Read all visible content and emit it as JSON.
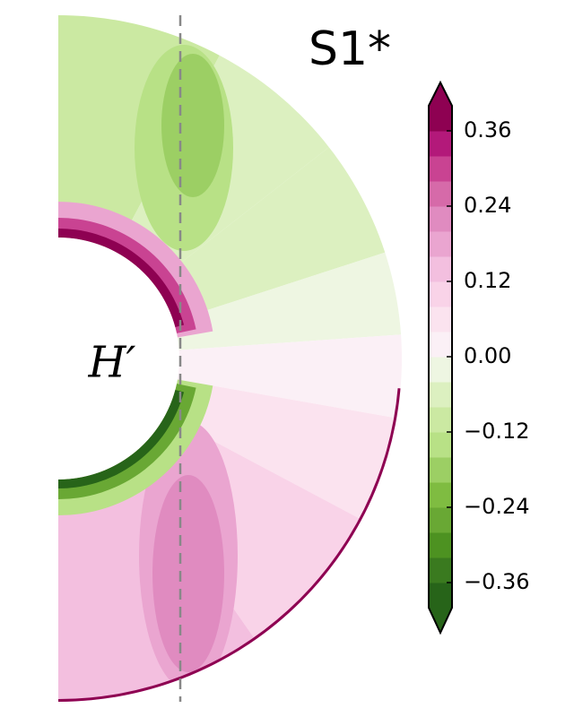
{
  "chart_data": {
    "type": "contour",
    "title": "S1*",
    "annotation": "H′",
    "ylim": [
      -0.4,
      0.4
    ],
    "yticks": [
      0.36,
      0.24,
      0.12,
      {
        "value": 0,
        "label": "0.00"
      },
      {
        "value": -0.12,
        "label": "−0.12"
      },
      {
        "value": -0.24,
        "label": "−0.24"
      },
      {
        "value": -0.36,
        "label": "−0.36"
      }
    ],
    "colors": [
      "#276419",
      "#3a7a1f",
      "#4d9221",
      "#69a834",
      "#7fbc41",
      "#9ccf64",
      "#b8e186",
      "#cbe9a2",
      "#dcf0c0",
      "#eef6e2",
      "#fbf0f6",
      "#fbe3ef",
      "#f9d3e8",
      "#f3bfdf",
      "#eaa5d0",
      "#e08bc0",
      "#d66aa9",
      "#c94392",
      "#b3197a",
      "#8e0152"
    ]
  }
}
